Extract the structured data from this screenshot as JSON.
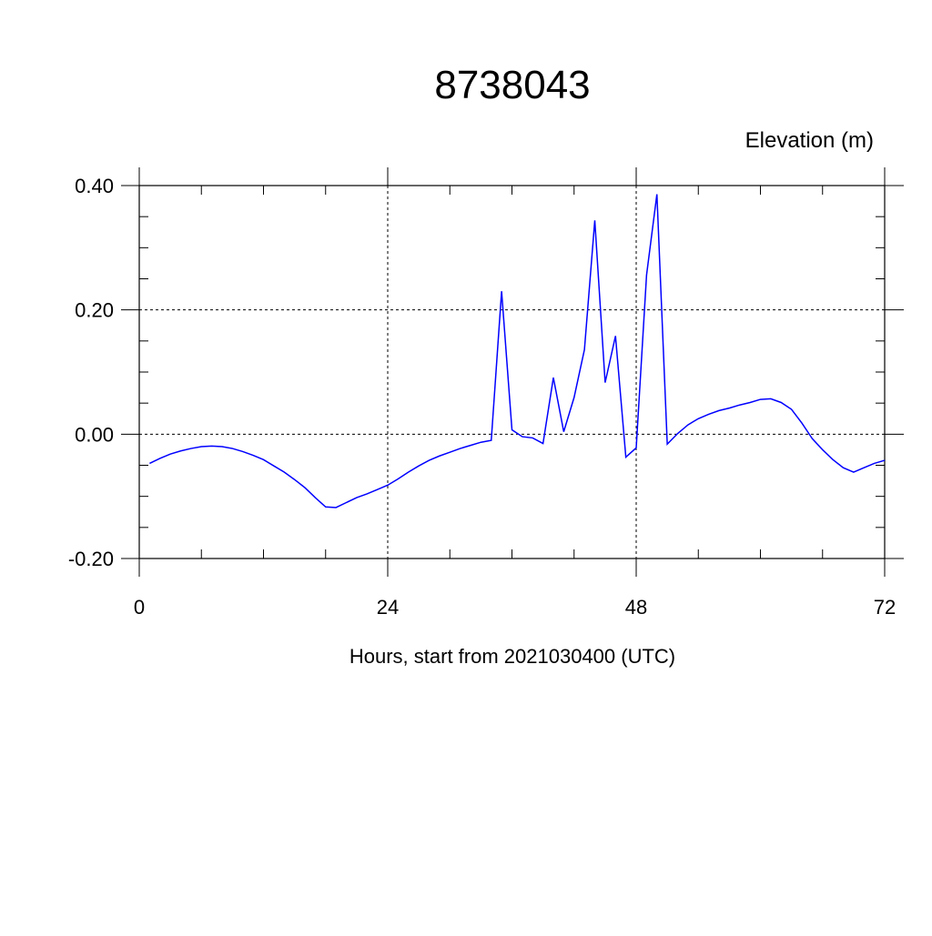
{
  "chart_data": {
    "type": "line",
    "title": "8738043",
    "subtitle": "Elevation (m)",
    "x_label": "Hours, start from 2021030400 (UTC)",
    "x": [
      1,
      2,
      3,
      4,
      5,
      6,
      7,
      8,
      9,
      10,
      11,
      12,
      13,
      14,
      15,
      16,
      17,
      18,
      19,
      20,
      21,
      22,
      23,
      24,
      25,
      26,
      27,
      28,
      29,
      30,
      31,
      32,
      33,
      34,
      35,
      36,
      37,
      38,
      39,
      40,
      41,
      42,
      43,
      44,
      45,
      46,
      47,
      48,
      49,
      50,
      51,
      52,
      53,
      54,
      55,
      56,
      57,
      58,
      59,
      60,
      61,
      62,
      63,
      64,
      65,
      66,
      67,
      68,
      69,
      70,
      71,
      72
    ],
    "series": [
      {
        "name": "8738043",
        "color": "#0000ff",
        "values": [
          -0.047,
          -0.039,
          -0.032,
          -0.027,
          -0.023,
          -0.02,
          -0.019,
          -0.02,
          -0.023,
          -0.028,
          -0.034,
          -0.041,
          -0.051,
          -0.061,
          -0.073,
          -0.086,
          -0.102,
          -0.117,
          -0.118,
          -0.11,
          -0.102,
          -0.096,
          -0.089,
          -0.082,
          -0.072,
          -0.061,
          -0.051,
          -0.042,
          -0.035,
          -0.029,
          -0.023,
          -0.018,
          -0.013,
          -0.01,
          0.23,
          0.007,
          -0.004,
          -0.006,
          -0.015,
          0.091,
          0.004,
          0.059,
          0.136,
          0.344,
          0.083,
          0.158,
          -0.037,
          -0.022,
          0.256,
          0.386,
          -0.016,
          0.001,
          0.015,
          0.025,
          0.032,
          0.038,
          0.042,
          0.047,
          0.051,
          0.056,
          0.057,
          0.051,
          0.04,
          0.018,
          -0.007,
          -0.025,
          -0.041,
          -0.054,
          -0.061,
          -0.054,
          -0.047,
          -0.042
        ]
      }
    ],
    "xlim": [
      0,
      72
    ],
    "xticks": [
      0,
      24,
      48,
      72
    ],
    "ylim": [
      -0.2,
      0.4
    ],
    "yticks": [
      {
        "value": -0.2,
        "label": "-0.20"
      },
      {
        "value": 0,
        "label": "0.00"
      },
      {
        "value": 0.2,
        "label": "0.20"
      },
      {
        "value": 0.4,
        "label": "0.40"
      }
    ],
    "grid": true
  }
}
